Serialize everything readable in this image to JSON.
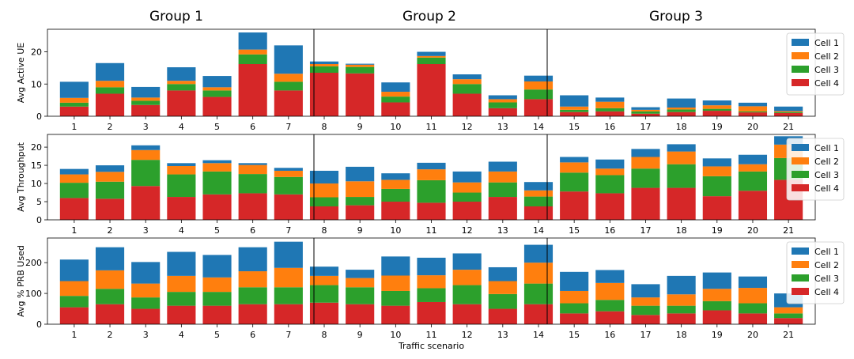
{
  "chart_data": {
    "type": "bar",
    "stacked": true,
    "xlabel": "Traffic scenario",
    "categories": [
      "1",
      "2",
      "3",
      "4",
      "5",
      "6",
      "7",
      "8",
      "9",
      "10",
      "11",
      "12",
      "13",
      "14",
      "15",
      "16",
      "17",
      "18",
      "19",
      "20",
      "21"
    ],
    "groups": [
      {
        "label": "Group 1"
      },
      {
        "label": "Group 2"
      },
      {
        "label": "Group 3"
      }
    ],
    "legend_position": "right",
    "series_names": [
      "Cell 1",
      "Cell 2",
      "Cell 3",
      "Cell 4"
    ],
    "series_colors": [
      "#1f77b4",
      "#ff7f0e",
      "#2ca02c",
      "#d62728"
    ],
    "panels": [
      {
        "ylabel": "Avg Active UE",
        "ylim": [
          0,
          27
        ],
        "yticks": [
          0,
          10,
          20
        ],
        "series": [
          {
            "name": "Cell 4",
            "values": [
              3.0,
              7.0,
              3.5,
              8.0,
              6.0,
              16.2,
              8.0,
              13.5,
              13.3,
              4.3,
              16.2,
              7.0,
              2.5,
              5.3,
              1.3,
              1.5,
              0.8,
              1.3,
              1.7,
              1.2,
              1.0
            ]
          },
          {
            "name": "Cell 3",
            "values": [
              1.2,
              2.0,
              1.3,
              2.0,
              2.0,
              3.0,
              2.7,
              2.0,
              2.0,
              1.8,
              2.0,
              3.0,
              1.8,
              3.0,
              0.7,
              1.0,
              0.7,
              0.8,
              0.6,
              0.3,
              0.3
            ]
          },
          {
            "name": "Cell 2",
            "values": [
              1.5,
              2.0,
              1.0,
              1.0,
              1.0,
              1.5,
              2.5,
              0.7,
              0.7,
              1.5,
              0.5,
              1.5,
              1.0,
              2.5,
              1.0,
              2.0,
              0.5,
              0.6,
              1.1,
              1.6,
              0.3
            ]
          },
          {
            "name": "Cell 1",
            "values": [
              5.0,
              5.5,
              3.3,
              4.2,
              3.5,
              5.3,
              8.8,
              0.8,
              0.3,
              2.9,
              1.3,
              1.5,
              1.2,
              1.8,
              3.5,
              1.3,
              0.8,
              2.8,
              1.5,
              1.1,
              1.4
            ]
          }
        ]
      },
      {
        "ylabel": "Avg Throughput",
        "ylim": [
          0,
          23.5
        ],
        "yticks": [
          0,
          5,
          10,
          15,
          20
        ],
        "series": [
          {
            "name": "Cell 4",
            "values": [
              6.0,
              5.8,
              9.3,
              6.3,
              7.0,
              7.3,
              7.0,
              3.7,
              4.0,
              5.0,
              4.7,
              5.0,
              6.3,
              3.7,
              7.8,
              7.3,
              8.8,
              8.8,
              6.5,
              8.0,
              11.0
            ]
          },
          {
            "name": "Cell 3",
            "values": [
              4.2,
              4.7,
              7.2,
              6.2,
              6.3,
              5.3,
              4.8,
              2.5,
              2.3,
              3.5,
              6.2,
              2.5,
              4.0,
              2.7,
              5.2,
              5.0,
              5.3,
              6.5,
              5.5,
              5.3,
              6.0
            ]
          },
          {
            "name": "Cell 2",
            "values": [
              2.3,
              2.7,
              2.7,
              2.3,
              2.3,
              2.5,
              1.7,
              3.8,
              4.3,
              2.5,
              3.0,
              2.8,
              3.0,
              1.7,
              2.8,
              1.8,
              3.2,
              3.5,
              2.7,
              2.0,
              3.7
            ]
          },
          {
            "name": "Cell 1",
            "values": [
              1.5,
              1.8,
              1.3,
              0.8,
              0.8,
              0.5,
              0.8,
              3.5,
              4.0,
              1.8,
              1.8,
              3.0,
              2.7,
              2.3,
              1.5,
              2.5,
              2.2,
              2.0,
              2.2,
              2.6,
              2.3
            ]
          }
        ]
      },
      {
        "ylabel": "Avg % PRB Used",
        "ylim": [
          0,
          280
        ],
        "yticks": [
          0,
          100,
          200
        ],
        "series": [
          {
            "name": "Cell 4",
            "values": [
              55,
              65,
              50,
              60,
              60,
              65,
              65,
              70,
              65,
              60,
              72,
              65,
              50,
              65,
              35,
              42,
              30,
              35,
              45,
              35,
              20
            ]
          },
          {
            "name": "Cell 3",
            "values": [
              37,
              50,
              37,
              45,
              45,
              55,
              55,
              57,
              55,
              48,
              45,
              62,
              48,
              67,
              33,
              37,
              30,
              25,
              30,
              33,
              15
            ]
          },
          {
            "name": "Cell 2",
            "values": [
              48,
              60,
              45,
              52,
              47,
              52,
              63,
              30,
              30,
              50,
              42,
              50,
              42,
              68,
              40,
              55,
              27,
              37,
              40,
              50,
              20
            ]
          },
          {
            "name": "Cell 1",
            "values": [
              70,
              75,
              70,
              78,
              73,
              78,
              85,
              30,
              27,
              62,
              57,
              53,
              45,
              58,
              62,
              42,
              43,
              60,
              53,
              37,
              45
            ]
          }
        ]
      }
    ]
  }
}
